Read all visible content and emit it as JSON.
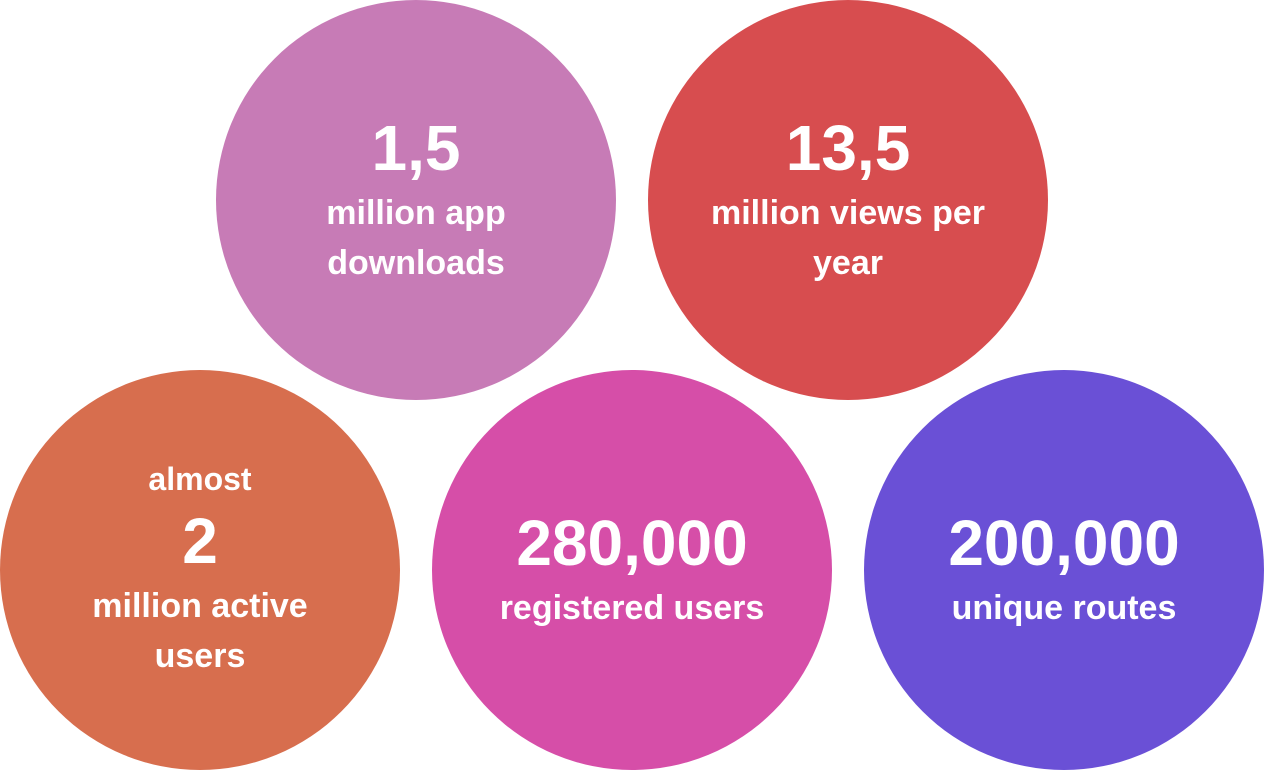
{
  "stats": [
    {
      "number": "1,5",
      "label": "million app downloads",
      "color": "#c77bb6"
    },
    {
      "number": "13,5",
      "label": "million views per year",
      "color": "#d74d4f"
    },
    {
      "prefix": "almost",
      "number": "2",
      "label": "million active users",
      "color": "#d76e4e"
    },
    {
      "number": "280,000",
      "label": "registered users",
      "color": "#d64ea8"
    },
    {
      "number": "200,000",
      "label": "unique routes",
      "color": "#6a50d6"
    }
  ]
}
